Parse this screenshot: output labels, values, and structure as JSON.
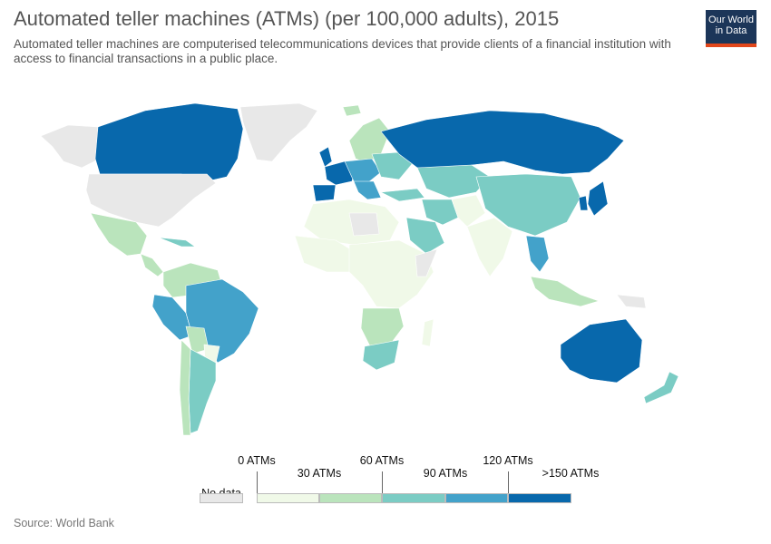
{
  "header": {
    "title": "Automated teller machines (ATMs) (per 100,000 adults), 2015",
    "subtitle": "Automated teller machines are computerised telecommunications devices that provide clients of a financial institution with access to financial transactions in a public place.",
    "logo_line1": "Our World",
    "logo_line2": "in Data"
  },
  "legend": {
    "no_data_label": "No data",
    "upper_labels": [
      "0 ATMs",
      "60 ATMs",
      "120 ATMs"
    ],
    "lower_labels": [
      "30 ATMs",
      "90 ATMs",
      ">150 ATMs"
    ],
    "colors": {
      "no_data": "#e8e8e8",
      "bin0": "#f0f9e8",
      "bin1": "#bae4bc",
      "bin2": "#7bccc4",
      "bin3": "#43a2ca",
      "bin4": "#0868ac"
    }
  },
  "footer": {
    "source": "Source: World Bank"
  }
}
